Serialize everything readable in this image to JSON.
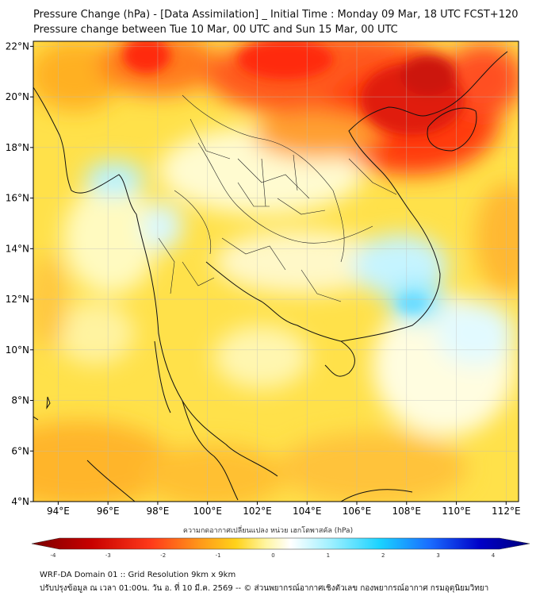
{
  "title_line1": "Pressure Change (hPa) - [Data Assimilation] _ Initial Time : Monday 09 Mar, 18 UTC FCST+120",
  "title_line2": "Pressure change between Tue 10 Mar, 00 UTC and Sun 15 Mar, 00 UTC",
  "map": {
    "lat_labels": [
      "22°N",
      "20°N",
      "18°N",
      "16°N",
      "14°N",
      "12°N",
      "10°N",
      "8°N",
      "6°N",
      "4°N"
    ],
    "lon_labels": [
      "94°E",
      "96°E",
      "98°E",
      "100°E",
      "102°E",
      "104°E",
      "106°E",
      "108°E",
      "110°E",
      "112°E"
    ],
    "lat_values": [
      22,
      20,
      18,
      16,
      14,
      12,
      10,
      8,
      6,
      4
    ],
    "lon_values": [
      94,
      96,
      98,
      100,
      102,
      104,
      106,
      108,
      110,
      112
    ],
    "extent": {
      "lon_min": 93,
      "lon_max": 112.5,
      "lat_min": 4,
      "lat_max": 22.2
    }
  },
  "colorbar": {
    "label": "ความกดอากาศเปลี่ยนแปลง หน่วย เฮกโตพาสคัล (hPa)",
    "ticks": [
      "-4",
      "-3",
      "-2",
      "-1",
      "0",
      "1",
      "2",
      "3",
      "4"
    ],
    "tick_values": [
      -4,
      -3,
      -2,
      -1,
      0,
      1,
      2,
      3,
      4
    ],
    "min": -4.3,
    "max": 4.3,
    "colors": [
      "#7a0000",
      "#c80000",
      "#ff3a1a",
      "#ff9a1a",
      "#ffd21a",
      "#fff5a0",
      "#ffffff",
      "#9ff0ff",
      "#1ad2ff",
      "#1a6cff",
      "#0000c8",
      "#00007a"
    ]
  },
  "footer_line1": "WRF-DA Domain 01 :: Grid Resolution 9km x 9km",
  "footer_line2": "ปรับปรุงข้อมูล ณ เวลา 01:00น. วัน อ. ที่ 10 มี.ค. 2569 -- © ส่วนพยากรณ์อากาศเชิงตัวเลข กองพยากรณ์อากาศ กรมอุตุนิยมวิทยา"
}
